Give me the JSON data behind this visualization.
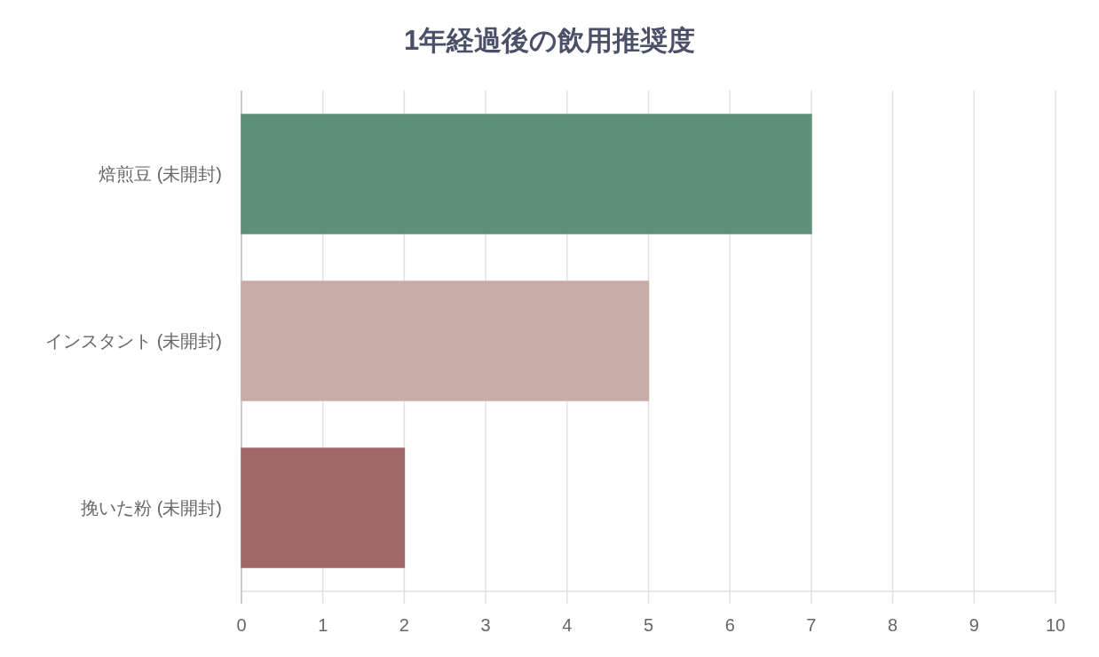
{
  "chart_data": {
    "type": "bar",
    "orientation": "horizontal",
    "title": "1年経過後の飲用推奨度",
    "categories": [
      "焙煎豆 (未開封)",
      "インスタント (未開封)",
      "挽いた粉 (未開封)"
    ],
    "values": [
      7,
      5,
      2
    ],
    "colors": [
      "#5e9179",
      "#c8aca8",
      "#a06868"
    ],
    "xlim": [
      0,
      10
    ],
    "xticks": [
      0,
      1,
      2,
      3,
      4,
      5,
      6,
      7,
      8,
      9,
      10
    ],
    "grid": "x"
  }
}
